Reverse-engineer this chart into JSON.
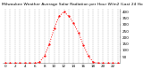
{
  "title": "Milwaukee Weather Average Solar Radiation per Hour W/m2 (Last 24 Hours)",
  "hours": [
    0,
    1,
    2,
    3,
    4,
    5,
    6,
    7,
    8,
    9,
    10,
    11,
    12,
    13,
    14,
    15,
    16,
    17,
    18,
    19,
    20,
    21,
    22,
    23
  ],
  "values": [
    0,
    0,
    0,
    0,
    0,
    0,
    0,
    8,
    55,
    150,
    270,
    365,
    400,
    365,
    310,
    235,
    140,
    55,
    8,
    0,
    0,
    0,
    0,
    0
  ],
  "line_color": "#ff0000",
  "bg_color": "#ffffff",
  "grid_color": "#888888",
  "ylim": [
    0,
    420
  ],
  "yticks": [
    50,
    100,
    150,
    200,
    250,
    300,
    350,
    400
  ],
  "ytick_labels": [
    "50",
    "100",
    "150",
    "200",
    "250",
    "300",
    "350",
    "400"
  ],
  "xtick_every": 2,
  "ylabel_fontsize": 3.0,
  "xlabel_fontsize": 3.0,
  "title_fontsize": 3.2,
  "line_width": 0.7,
  "marker_size": 1.2
}
